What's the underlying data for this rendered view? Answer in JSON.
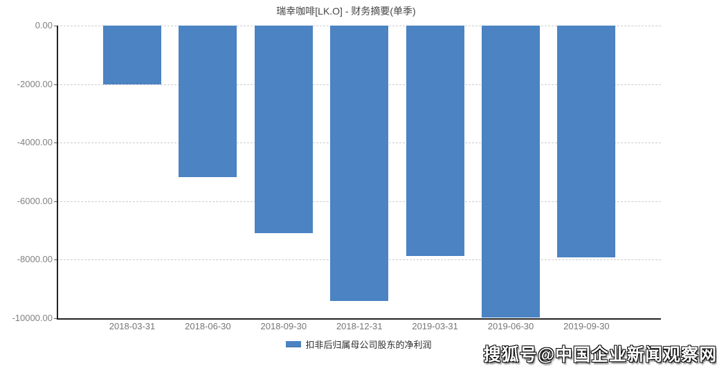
{
  "title": "瑞幸咖啡[LK.O] - 财务摘要(单季)",
  "colors": {
    "bar": "#4b83c3",
    "grid": "#cccccc",
    "axis": "#222222",
    "y_tick_label": "#808080",
    "x_tick_label": "#757575",
    "title_text": "#444444",
    "legend_text": "#2b2b2b"
  },
  "chart_data": {
    "type": "bar",
    "title": "瑞幸咖啡[LK.O] - 财务摘要(单季)",
    "categories": [
      "2018-03-31",
      "2018-06-30",
      "2018-09-30",
      "2018-12-31",
      "2019-03-31",
      "2019-06-30",
      "2019-09-30"
    ],
    "series": [
      {
        "name": "扣非后归属母公司股东的净利润",
        "values": [
          -2000,
          -5180,
          -7090,
          -9400,
          -7880,
          -9980,
          -7910
        ]
      }
    ],
    "xlabel": "",
    "ylabel": "",
    "ylim": [
      -10000,
      0
    ],
    "yticks": [
      0,
      -2000,
      -4000,
      -6000,
      -8000,
      -10000
    ],
    "ytick_labels": [
      "0.00",
      "-2000.00",
      "-4000.00",
      "-6000.00",
      "-8000.00",
      "-10000.00"
    ],
    "grid": true,
    "grid_style": "dashed",
    "legend_position": "bottom"
  },
  "legend": {
    "label": "扣非后归属母公司股东的净利润"
  },
  "watermark": {
    "text": "搜狐号@中国企业新闻观察网"
  }
}
